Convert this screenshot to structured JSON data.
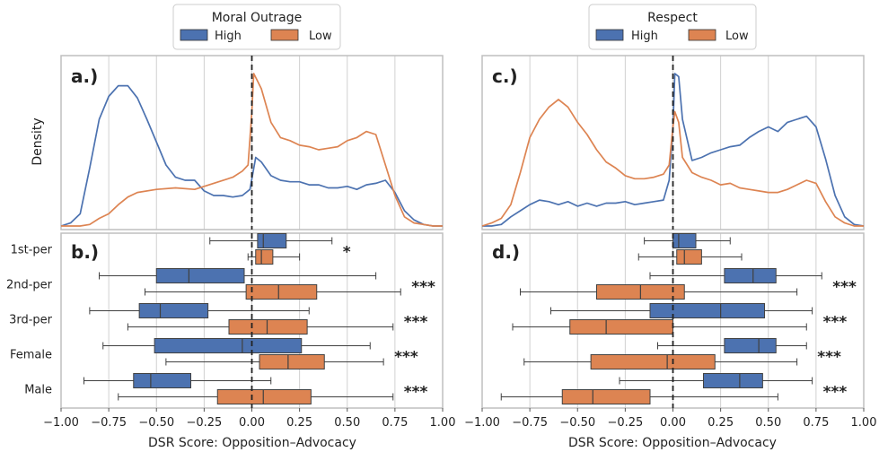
{
  "colors": {
    "high": "#4c72b0",
    "low": "#dd8452",
    "grid": "#d0d0d0",
    "frame": "#bfbfbf",
    "whisker": "#404040"
  },
  "legends": [
    {
      "title": "Moral Outrage",
      "entries": [
        "High",
        "Low"
      ]
    },
    {
      "title": "Respect",
      "entries": [
        "High",
        "Low"
      ]
    }
  ],
  "chart_data": [
    {
      "type": "line",
      "panel": "a.)",
      "ylabel": "Density",
      "xlim": [
        -1.0,
        1.0
      ],
      "grid": true,
      "vline_x": 0.0,
      "series": [
        {
          "name": "High",
          "x": [
            -1.0,
            -0.95,
            -0.9,
            -0.85,
            -0.8,
            -0.75,
            -0.7,
            -0.65,
            -0.6,
            -0.55,
            -0.5,
            -0.45,
            -0.4,
            -0.35,
            -0.3,
            -0.25,
            -0.2,
            -0.15,
            -0.1,
            -0.05,
            -0.01,
            0.02,
            0.05,
            0.1,
            0.15,
            0.2,
            0.25,
            0.3,
            0.35,
            0.4,
            0.45,
            0.5,
            0.55,
            0.6,
            0.65,
            0.7,
            0.75,
            0.8,
            0.85,
            0.9,
            0.95,
            1.0
          ],
          "y": [
            0.0,
            0.02,
            0.08,
            0.38,
            0.7,
            0.85,
            0.92,
            0.92,
            0.84,
            0.7,
            0.55,
            0.4,
            0.32,
            0.3,
            0.3,
            0.23,
            0.2,
            0.2,
            0.19,
            0.2,
            0.24,
            0.45,
            0.42,
            0.33,
            0.3,
            0.29,
            0.29,
            0.27,
            0.27,
            0.25,
            0.25,
            0.26,
            0.24,
            0.27,
            0.28,
            0.3,
            0.22,
            0.1,
            0.04,
            0.01,
            0.0,
            0.0
          ]
        },
        {
          "name": "Low",
          "x": [
            -1.0,
            -0.9,
            -0.85,
            -0.8,
            -0.75,
            -0.7,
            -0.65,
            -0.6,
            -0.5,
            -0.4,
            -0.3,
            -0.2,
            -0.1,
            -0.05,
            -0.02,
            0.0,
            0.01,
            0.03,
            0.05,
            0.1,
            0.15,
            0.2,
            0.25,
            0.3,
            0.35,
            0.4,
            0.45,
            0.5,
            0.55,
            0.6,
            0.65,
            0.7,
            0.75,
            0.8,
            0.85,
            0.9,
            0.95,
            1.0
          ],
          "y": [
            0.0,
            0.0,
            0.01,
            0.05,
            0.08,
            0.14,
            0.19,
            0.22,
            0.24,
            0.25,
            0.24,
            0.28,
            0.32,
            0.36,
            0.4,
            0.75,
            1.0,
            0.95,
            0.9,
            0.68,
            0.58,
            0.56,
            0.53,
            0.52,
            0.5,
            0.51,
            0.52,
            0.56,
            0.58,
            0.62,
            0.6,
            0.4,
            0.2,
            0.06,
            0.02,
            0.01,
            0.0,
            0.0
          ]
        }
      ]
    },
    {
      "type": "box",
      "panel": "b.)",
      "xlabel": "DSR Score: Opposition–Advocacy",
      "xlim": [
        -1.0,
        1.0
      ],
      "xticks": [
        "−1.00",
        "−0.75",
        "−0.50",
        "−0.25",
        "0.00",
        "0.25",
        "0.50",
        "0.75",
        "1.00"
      ],
      "categories": [
        "1st-per",
        "2nd-per",
        "3rd-per",
        "Female",
        "Male"
      ],
      "significance": [
        "*",
        "***",
        "***",
        "***",
        "***"
      ],
      "series": [
        {
          "name": "High",
          "boxes": [
            {
              "whislo": -0.22,
              "q1": 0.03,
              "med": 0.06,
              "q3": 0.18,
              "whishi": 0.42
            },
            {
              "whislo": -0.8,
              "q1": -0.5,
              "med": -0.33,
              "q3": -0.04,
              "whishi": 0.65
            },
            {
              "whislo": -0.85,
              "q1": -0.59,
              "med": -0.48,
              "q3": -0.23,
              "whishi": 0.3
            },
            {
              "whislo": -0.78,
              "q1": -0.51,
              "med": -0.05,
              "q3": 0.26,
              "whishi": 0.62
            },
            {
              "whislo": -0.88,
              "q1": -0.62,
              "med": -0.53,
              "q3": -0.32,
              "whishi": 0.1
            }
          ]
        },
        {
          "name": "Low",
          "boxes": [
            {
              "whislo": -0.02,
              "q1": 0.02,
              "med": 0.05,
              "q3": 0.11,
              "whishi": 0.25
            },
            {
              "whislo": -0.56,
              "q1": -0.03,
              "med": 0.14,
              "q3": 0.34,
              "whishi": 0.78
            },
            {
              "whislo": -0.65,
              "q1": -0.12,
              "med": 0.08,
              "q3": 0.29,
              "whishi": 0.74
            },
            {
              "whislo": -0.45,
              "q1": 0.04,
              "med": 0.19,
              "q3": 0.38,
              "whishi": 0.69
            },
            {
              "whislo": -0.7,
              "q1": -0.18,
              "med": 0.06,
              "q3": 0.31,
              "whishi": 0.74
            }
          ]
        }
      ]
    },
    {
      "type": "line",
      "panel": "c.)",
      "xlim": [
        -1.0,
        1.0
      ],
      "grid": true,
      "vline_x": 0.0,
      "series": [
        {
          "name": "High",
          "x": [
            -1.0,
            -0.95,
            -0.9,
            -0.85,
            -0.8,
            -0.75,
            -0.7,
            -0.65,
            -0.6,
            -0.55,
            -0.5,
            -0.45,
            -0.4,
            -0.35,
            -0.3,
            -0.25,
            -0.2,
            -0.15,
            -0.1,
            -0.05,
            -0.02,
            0.0,
            0.01,
            0.03,
            0.05,
            0.1,
            0.15,
            0.2,
            0.25,
            0.3,
            0.35,
            0.4,
            0.45,
            0.5,
            0.55,
            0.6,
            0.65,
            0.7,
            0.75,
            0.8,
            0.85,
            0.9,
            0.95,
            1.0
          ],
          "y": [
            0.0,
            0.0,
            0.01,
            0.06,
            0.1,
            0.14,
            0.17,
            0.16,
            0.14,
            0.16,
            0.13,
            0.15,
            0.13,
            0.15,
            0.15,
            0.16,
            0.14,
            0.15,
            0.16,
            0.17,
            0.3,
            0.65,
            1.0,
            0.98,
            0.7,
            0.43,
            0.45,
            0.48,
            0.5,
            0.52,
            0.53,
            0.58,
            0.62,
            0.65,
            0.62,
            0.68,
            0.7,
            0.72,
            0.65,
            0.44,
            0.2,
            0.06,
            0.01,
            0.0
          ]
        },
        {
          "name": "Low",
          "x": [
            -1.0,
            -0.95,
            -0.9,
            -0.85,
            -0.8,
            -0.75,
            -0.7,
            -0.65,
            -0.6,
            -0.55,
            -0.5,
            -0.45,
            -0.4,
            -0.35,
            -0.3,
            -0.25,
            -0.2,
            -0.15,
            -0.1,
            -0.05,
            -0.02,
            0.0,
            0.01,
            0.03,
            0.05,
            0.1,
            0.15,
            0.2,
            0.25,
            0.3,
            0.35,
            0.4,
            0.45,
            0.5,
            0.55,
            0.6,
            0.65,
            0.7,
            0.75,
            0.8,
            0.85,
            0.9,
            0.95,
            1.0
          ],
          "y": [
            0.0,
            0.02,
            0.05,
            0.14,
            0.35,
            0.58,
            0.7,
            0.78,
            0.83,
            0.78,
            0.68,
            0.6,
            0.5,
            0.42,
            0.38,
            0.33,
            0.31,
            0.31,
            0.32,
            0.34,
            0.4,
            0.65,
            0.75,
            0.68,
            0.45,
            0.35,
            0.32,
            0.3,
            0.27,
            0.28,
            0.25,
            0.24,
            0.23,
            0.22,
            0.22,
            0.24,
            0.27,
            0.3,
            0.28,
            0.16,
            0.06,
            0.02,
            0.0,
            0.0
          ]
        }
      ]
    },
    {
      "type": "box",
      "panel": "d.)",
      "xlabel": "DSR Score: Opposition–Advocacy",
      "xlim": [
        -1.0,
        1.0
      ],
      "xticks": [
        "−1.00",
        "−0.75",
        "−0.50",
        "−0.25",
        "0.00",
        "0.25",
        "0.50",
        "0.75",
        "1.00"
      ],
      "categories": [
        "1st-per",
        "2nd-per",
        "3rd-per",
        "Female",
        "Male"
      ],
      "significance": [
        "",
        "***",
        "***",
        "***",
        "***"
      ],
      "series": [
        {
          "name": "High",
          "boxes": [
            {
              "whislo": -0.15,
              "q1": 0.0,
              "med": 0.03,
              "q3": 0.12,
              "whishi": 0.3
            },
            {
              "whislo": -0.12,
              "q1": 0.27,
              "med": 0.42,
              "q3": 0.54,
              "whishi": 0.78
            },
            {
              "whislo": -0.64,
              "q1": -0.12,
              "med": 0.25,
              "q3": 0.48,
              "whishi": 0.73
            },
            {
              "whislo": -0.08,
              "q1": 0.27,
              "med": 0.45,
              "q3": 0.54,
              "whishi": 0.7
            },
            {
              "whislo": -0.28,
              "q1": 0.16,
              "med": 0.35,
              "q3": 0.47,
              "whishi": 0.73
            }
          ]
        },
        {
          "name": "Low",
          "boxes": [
            {
              "whislo": -0.18,
              "q1": 0.02,
              "med": 0.06,
              "q3": 0.15,
              "whishi": 0.36
            },
            {
              "whislo": -0.8,
              "q1": -0.4,
              "med": -0.17,
              "q3": 0.06,
              "whishi": 0.65
            },
            {
              "whislo": -0.84,
              "q1": -0.54,
              "med": -0.35,
              "q3": 0.0,
              "whishi": 0.7
            },
            {
              "whislo": -0.78,
              "q1": -0.43,
              "med": -0.03,
              "q3": 0.22,
              "whishi": 0.65
            },
            {
              "whislo": -0.9,
              "q1": -0.58,
              "med": -0.42,
              "q3": -0.12,
              "whishi": 0.55
            }
          ]
        }
      ]
    }
  ]
}
